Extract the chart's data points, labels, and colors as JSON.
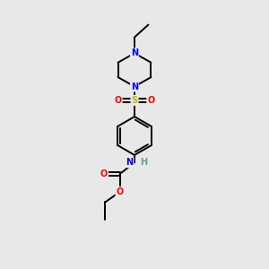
{
  "bg_color": "#e8e8e8",
  "bond_color": "#000000",
  "N_color": "#0000ff",
  "O_color": "#ff0000",
  "S_color": "#bbbb00",
  "H_color": "#5f9ea0",
  "line_width": 1.4,
  "fig_size": [
    3.0,
    3.0
  ],
  "dpi": 100,
  "xlim": [
    0,
    10
  ],
  "ylim": [
    0,
    10
  ]
}
